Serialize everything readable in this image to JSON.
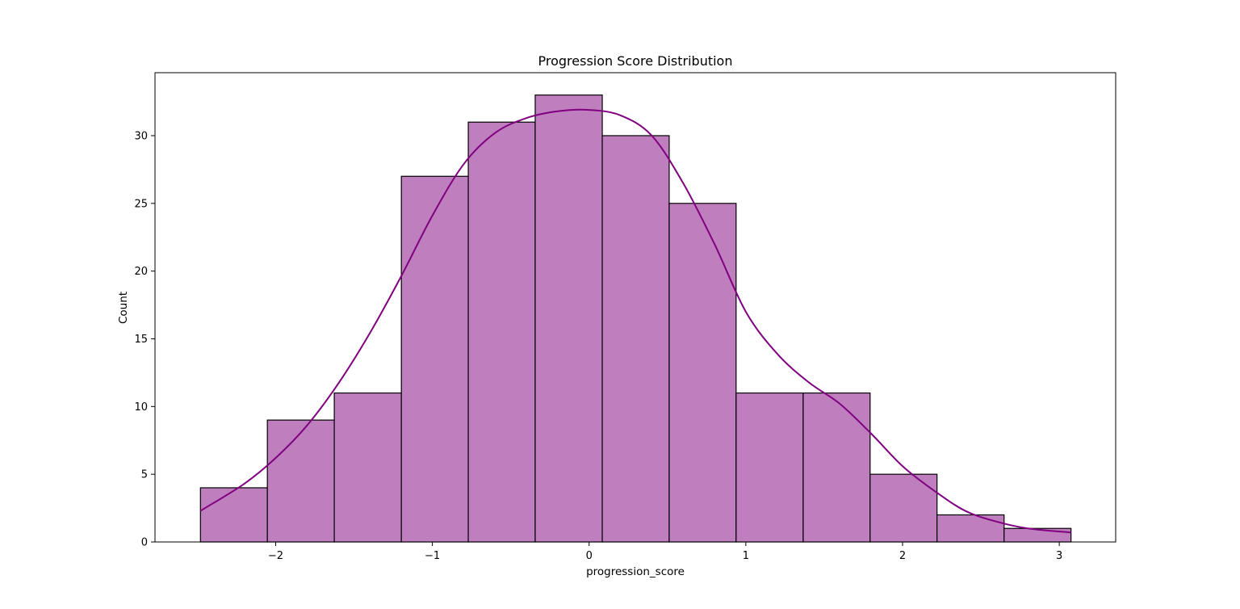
{
  "chart_data": {
    "type": "bar",
    "title": "Progression Score Distribution",
    "xlabel": "progression_score",
    "ylabel": "Count",
    "xlim": [
      -2.77,
      3.36
    ],
    "ylim": [
      0,
      34.65
    ],
    "xticks": [
      -2,
      -1,
      0,
      1,
      2,
      3
    ],
    "yticks": [
      0,
      5,
      10,
      15,
      20,
      25,
      30
    ],
    "bins": [
      {
        "x0": -2.48,
        "x1": -2.053,
        "count": 4
      },
      {
        "x0": -2.053,
        "x1": -1.626,
        "count": 9
      },
      {
        "x0": -1.626,
        "x1": -1.198,
        "count": 11
      },
      {
        "x0": -1.198,
        "x1": -0.771,
        "count": 27
      },
      {
        "x0": -0.771,
        "x1": -0.344,
        "count": 31
      },
      {
        "x0": -0.344,
        "x1": 0.084,
        "count": 33
      },
      {
        "x0": 0.084,
        "x1": 0.511,
        "count": 30
      },
      {
        "x0": 0.511,
        "x1": 0.938,
        "count": 25
      },
      {
        "x0": 0.938,
        "x1": 1.366,
        "count": 11
      },
      {
        "x0": 1.366,
        "x1": 1.793,
        "count": 11
      },
      {
        "x0": 1.793,
        "x1": 2.22,
        "count": 5
      },
      {
        "x0": 2.22,
        "x1": 2.648,
        "count": 2
      },
      {
        "x0": 2.648,
        "x1": 3.075,
        "count": 1
      }
    ],
    "kde": {
      "x": [
        -2.48,
        -2.2,
        -2.0,
        -1.8,
        -1.6,
        -1.4,
        -1.2,
        -1.0,
        -0.8,
        -0.6,
        -0.4,
        -0.2,
        0.0,
        0.2,
        0.4,
        0.6,
        0.8,
        1.0,
        1.2,
        1.4,
        1.6,
        1.8,
        2.0,
        2.2,
        2.4,
        2.6,
        2.8,
        3.075
      ],
      "y": [
        2.3,
        4.3,
        6.2,
        8.6,
        11.7,
        15.4,
        19.6,
        24.1,
        27.9,
        30.2,
        31.3,
        31.8,
        31.9,
        31.5,
        30.0,
        26.5,
        22.0,
        17.0,
        13.9,
        11.8,
        10.2,
        8.0,
        5.6,
        3.8,
        2.3,
        1.5,
        1.0,
        0.7
      ]
    },
    "colors": {
      "bar_fill": "#bf7fbf",
      "bar_edge": "#000000",
      "kde_line": "#800080"
    },
    "grid": false,
    "legend": "none"
  }
}
